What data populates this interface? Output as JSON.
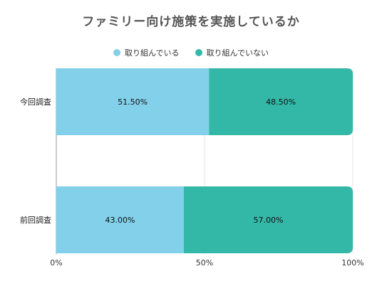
{
  "chart_data": {
    "type": "bar",
    "orientation": "horizontal",
    "stacked": true,
    "title": "ファミリー向け施策を実施しているか",
    "categories": [
      "今回調査",
      "前回調査"
    ],
    "series": [
      {
        "name": "取り組んでいる",
        "values": [
          51.5,
          43.0
        ],
        "labels": [
          "51.50%",
          "43.00%"
        ],
        "color": "#82d0ea"
      },
      {
        "name": "取り組んでいない",
        "values": [
          48.5,
          57.0
        ],
        "labels": [
          "48.50%",
          "57.00%"
        ],
        "color": "#33b8a8"
      }
    ],
    "xlim": [
      0,
      100
    ],
    "x_ticks": [
      "0%",
      "50%",
      "100%"
    ],
    "grid": true,
    "legend_position": "top-center"
  }
}
